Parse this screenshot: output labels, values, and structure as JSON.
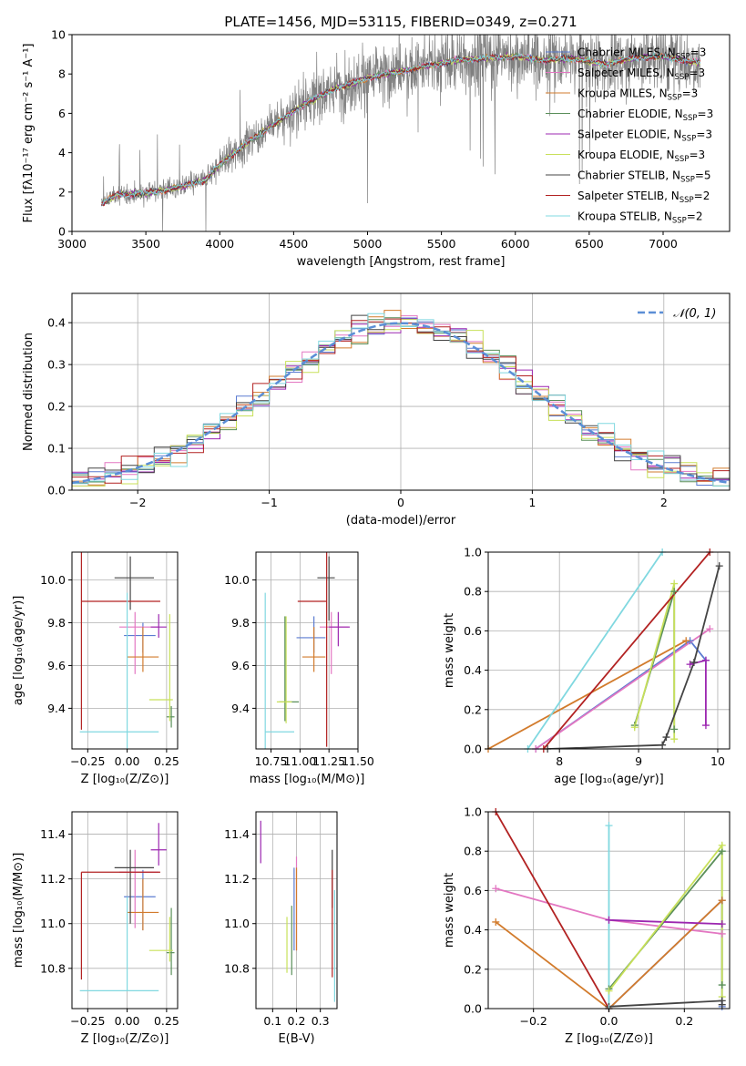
{
  "chart_data": [
    {
      "type": "line",
      "title": "PLATE=1456, MJD=53115, FIBERID=0349, z=0.271",
      "xlabel": "wavelength [Angstrom, rest frame]",
      "ylabel": "Flux [fλ10⁻¹⁷ erg cm⁻² s⁻¹ A⁻¹]",
      "xlim": [
        3000,
        7450
      ],
      "ylim": [
        0,
        10
      ],
      "xticks": [
        3000,
        3500,
        4000,
        4500,
        5000,
        5500,
        6000,
        6500,
        7000
      ],
      "yticks": [
        0,
        2,
        4,
        6,
        8,
        10
      ],
      "legend": "top-right",
      "series": [
        {
          "name": "Chabrier MILES, N",
          "sub": "SSP",
          "suffix": "=3",
          "color": "#5b7bd1"
        },
        {
          "name": "Salpeter MILES, N",
          "sub": "SSP",
          "suffix": "=3",
          "color": "#e377c2"
        },
        {
          "name": "Kroupa MILES, N",
          "sub": "SSP",
          "suffix": "=3",
          "color": "#d27b2c"
        },
        {
          "name": "Chabrier ELODIE, N",
          "sub": "SSP",
          "suffix": "=3",
          "color": "#5a8f5a"
        },
        {
          "name": "Salpeter ELODIE, N",
          "sub": "SSP",
          "suffix": "=3",
          "color": "#9c27b0"
        },
        {
          "name": "Kroupa ELODIE, N",
          "sub": "SSP",
          "suffix": "=3",
          "color": "#c8e05a"
        },
        {
          "name": "Chabrier STELIB, N",
          "sub": "SSP",
          "suffix": "=5",
          "color": "#444444"
        },
        {
          "name": "Salpeter STELIB, N",
          "sub": "SSP",
          "suffix": "=2",
          "color": "#b22222"
        },
        {
          "name": "Kroupa STELIB, N",
          "sub": "SSP",
          "suffix": "=2",
          "color": "#80d8e0"
        }
      ],
      "data_color": "#808080",
      "continuum": {
        "x": [
          3200,
          3300,
          3500,
          3700,
          3900,
          4000,
          4200,
          4400,
          4600,
          4800,
          5000,
          5200,
          5400,
          5600,
          5800,
          6000,
          6200,
          6400,
          6600,
          6800,
          7000,
          7200
        ],
        "y": [
          1.4,
          1.85,
          1.95,
          2.2,
          2.6,
          3.4,
          4.6,
          5.6,
          6.6,
          7.3,
          7.8,
          8.1,
          8.4,
          8.7,
          8.8,
          8.9,
          8.7,
          8.8,
          8.5,
          8.8,
          8.9,
          8.6
        ]
      }
    },
    {
      "type": "step",
      "xlabel": "(data-model)/error",
      "ylabel": "Normed distribution",
      "xlim": [
        -2.5,
        2.5
      ],
      "ylim": [
        0,
        0.47
      ],
      "xticks": [
        -2,
        -1,
        0,
        1,
        2
      ],
      "yticks": [
        0.0,
        0.1,
        0.2,
        0.3,
        0.4
      ],
      "reference": {
        "label": "𝒩(0, 1)",
        "color": "#5b8ed6"
      }
    },
    {
      "type": "errorbar",
      "xlabel": "Z [log₁₀(Z/Z⊙)]",
      "ylabel": "age  [log₁₀(age/yr)]",
      "xlim": [
        -0.35,
        0.32
      ],
      "ylim": [
        9.21,
        10.13
      ],
      "xticks": [
        -0.25,
        0.0,
        0.25
      ],
      "yticks": [
        9.4,
        9.6,
        9.8,
        10.0
      ],
      "points": [
        {
          "x": 0.1,
          "xerr": [
            0.12,
            0.08
          ],
          "y": 9.74,
          "yerr": [
            0.08,
            0.06
          ]
        },
        {
          "x": 0.05,
          "xerr": [
            0.1,
            0.15
          ],
          "y": 9.78,
          "yerr": [
            0.22,
            0.07
          ]
        },
        {
          "x": 0.1,
          "xerr": [
            0.1,
            0.1
          ],
          "y": 9.64,
          "yerr": [
            0.07,
            0.14
          ]
        },
        {
          "x": 0.28,
          "xerr": [
            0.03,
            0.02
          ],
          "y": 9.36,
          "yerr": [
            0.05,
            0.05
          ]
        },
        {
          "x": 0.2,
          "xerr": [
            0.05,
            0.05
          ],
          "y": 9.78,
          "yerr": [
            0.05,
            0.06
          ]
        },
        {
          "x": 0.27,
          "xerr": [
            0.13,
            0.02
          ],
          "y": 9.44,
          "yerr": [
            0.1,
            0.4
          ]
        },
        {
          "x": 0.02,
          "xerr": [
            0.1,
            0.15
          ],
          "y": 10.01,
          "yerr": [
            0.15,
            0.1
          ]
        },
        {
          "x": -0.29,
          "xerr": [
            0.0,
            0.5
          ],
          "y": 9.9,
          "yerr": [
            0.6,
            0.25
          ]
        },
        {
          "x": 0.0,
          "xerr": [
            0.3,
            0.2
          ],
          "y": 9.29,
          "yerr": [
            0.15,
            0.65
          ]
        }
      ]
    },
    {
      "type": "errorbar",
      "xlabel": "mass [log₁₀(M/M⊙)]",
      "xlim": [
        10.62,
        11.5
      ],
      "ylim": [
        9.21,
        10.13
      ],
      "xticks": [
        10.75,
        11.0,
        11.25,
        11.5
      ],
      "yticks": [
        9.4,
        9.6,
        9.8,
        10.0
      ],
      "points": [
        {
          "x": 11.12,
          "xerr": [
            0.15,
            0.1
          ],
          "y": 9.73,
          "yerr": [
            0.07,
            0.1
          ]
        },
        {
          "x": 11.27,
          "xerr": [
            0.1,
            0.15
          ],
          "y": 9.78,
          "yerr": [
            0.22,
            0.07
          ]
        },
        {
          "x": 11.12,
          "xerr": [
            0.1,
            0.1
          ],
          "y": 9.64,
          "yerr": [
            0.07,
            0.14
          ]
        },
        {
          "x": 10.87,
          "xerr": [
            0.05,
            0.12
          ],
          "y": 9.43,
          "yerr": [
            0.09,
            0.4
          ]
        },
        {
          "x": 11.33,
          "xerr": [
            0.08,
            0.1
          ],
          "y": 9.78,
          "yerr": [
            0.09,
            0.07
          ]
        },
        {
          "x": 10.88,
          "xerr": [
            0.08,
            0.05
          ],
          "y": 9.43,
          "yerr": [
            0.1,
            0.4
          ]
        },
        {
          "x": 11.25,
          "xerr": [
            0.1,
            0.05
          ],
          "y": 10.01,
          "yerr": [
            0.2,
            0.1
          ]
        },
        {
          "x": 11.23,
          "xerr": [
            0.25,
            0.0
          ],
          "y": 9.9,
          "yerr": [
            0.68,
            0.25
          ]
        },
        {
          "x": 10.7,
          "xerr": [
            0.0,
            0.25
          ],
          "y": 9.29,
          "yerr": [
            0.15,
            0.65
          ]
        }
      ]
    },
    {
      "type": "line",
      "xlabel": "age  [log₁₀(age/yr)]",
      "ylabel": "mass weight",
      "xlim": [
        7.1,
        10.15
      ],
      "ylim": [
        0,
        1
      ],
      "xticks": [
        8,
        9,
        10
      ],
      "yticks": [
        0.0,
        0.2,
        0.4,
        0.6,
        0.8,
        1.0
      ],
      "series": [
        {
          "x": [
            7.7,
            9.65,
            9.85
          ],
          "y": [
            0.0,
            0.55,
            0.45
          ]
        },
        {
          "x": [
            7.7,
            9.9
          ],
          "y": [
            0.0,
            0.61
          ]
        },
        {
          "x": [
            7.1,
            9.6
          ],
          "y": [
            0.0,
            0.55
          ]
        },
        {
          "x": [
            8.95,
            9.45,
            9.45
          ],
          "y": [
            0.12,
            0.8,
            0.1
          ]
        },
        {
          "x": [
            9.65,
            9.85,
            9.85
          ],
          "y": [
            0.43,
            0.45,
            0.12
          ]
        },
        {
          "x": [
            8.95,
            9.45,
            9.45
          ],
          "y": [
            0.11,
            0.84,
            0.05
          ]
        },
        {
          "x": [
            7.85,
            9.3,
            9.35,
            9.7,
            10.02
          ],
          "y": [
            0.0,
            0.02,
            0.06,
            0.44,
            0.93
          ]
        },
        {
          "x": [
            7.8,
            9.9
          ],
          "y": [
            0.0,
            1.0
          ]
        },
        {
          "x": [
            7.6,
            9.3
          ],
          "y": [
            0.0,
            1.0
          ]
        }
      ]
    },
    {
      "type": "errorbar",
      "xlabel": "Z [log₁₀(Z/Z⊙)]",
      "ylabel": "mass [log₁₀(M/M⊙)]",
      "xlim": [
        -0.35,
        0.32
      ],
      "ylim": [
        10.62,
        11.5
      ],
      "xticks": [
        -0.25,
        0.0,
        0.25
      ],
      "yticks": [
        10.8,
        11.0,
        11.2,
        11.4
      ],
      "points": [
        {
          "x": 0.1,
          "xerr": [
            0.12,
            0.08
          ],
          "y": 11.12,
          "yerr": [
            0.15,
            0.12
          ]
        },
        {
          "x": 0.05,
          "xerr": [
            0.1,
            0.15
          ],
          "y": 11.23,
          "yerr": [
            0.25,
            0.1
          ]
        },
        {
          "x": 0.1,
          "xerr": [
            0.1,
            0.1
          ],
          "y": 11.05,
          "yerr": [
            0.08,
            0.15
          ]
        },
        {
          "x": 0.28,
          "xerr": [
            0.03,
            0.02
          ],
          "y": 10.87,
          "yerr": [
            0.1,
            0.2
          ]
        },
        {
          "x": 0.2,
          "xerr": [
            0.05,
            0.05
          ],
          "y": 11.33,
          "yerr": [
            0.07,
            0.12
          ]
        },
        {
          "x": 0.27,
          "xerr": [
            0.13,
            0.02
          ],
          "y": 10.88,
          "yerr": [
            0.05,
            0.15
          ]
        },
        {
          "x": 0.02,
          "xerr": [
            0.1,
            0.15
          ],
          "y": 11.25,
          "yerr": [
            0.25,
            0.08
          ]
        },
        {
          "x": -0.29,
          "xerr": [
            0.0,
            0.5
          ],
          "y": 11.23,
          "yerr": [
            0.48,
            0.0
          ]
        },
        {
          "x": 0.0,
          "xerr": [
            0.3,
            0.2
          ],
          "y": 10.7,
          "yerr": [
            0.0,
            0.42
          ]
        }
      ]
    },
    {
      "type": "errorbar",
      "xlabel": "E(B-V)",
      "xlim": [
        0.03,
        0.37
      ],
      "ylim": [
        10.62,
        11.5
      ],
      "xticks": [
        0.1,
        0.2,
        0.3
      ],
      "yticks": [
        10.8,
        11.0,
        11.2,
        11.4
      ],
      "points": [
        {
          "x": 0.19,
          "xerr": [
            0,
            0
          ],
          "y": 11.05,
          "yerr": [
            0.17,
            0.2
          ]
        },
        {
          "x": 0.2,
          "xerr": [
            0,
            0
          ],
          "y": 11.1,
          "yerr": [
            0.22,
            0.2
          ]
        },
        {
          "x": 0.2,
          "xerr": [
            0,
            0
          ],
          "y": 11.05,
          "yerr": [
            0.17,
            0.2
          ]
        },
        {
          "x": 0.18,
          "xerr": [
            0,
            0
          ],
          "y": 10.92,
          "yerr": [
            0.15,
            0.16
          ]
        },
        {
          "x": 0.05,
          "xerr": [
            0,
            0
          ],
          "y": 11.36,
          "yerr": [
            0.09,
            0.1
          ]
        },
        {
          "x": 0.16,
          "xerr": [
            0,
            0
          ],
          "y": 10.93,
          "yerr": [
            0.15,
            0.1
          ]
        },
        {
          "x": 0.35,
          "xerr": [
            0,
            0
          ],
          "y": 11.2,
          "yerr": [
            0.13,
            0.13
          ]
        },
        {
          "x": 0.35,
          "xerr": [
            0,
            0
          ],
          "y": 11.0,
          "yerr": [
            0.24,
            0.24
          ]
        },
        {
          "x": 0.36,
          "xerr": [
            0,
            0
          ],
          "y": 10.9,
          "yerr": [
            0.25,
            0.25
          ]
        }
      ]
    },
    {
      "type": "line",
      "xlabel": "Z [log₁₀(Z/Z⊙)]",
      "ylabel": "mass weight",
      "xlim": [
        -0.32,
        0.32
      ],
      "ylim": [
        0,
        1
      ],
      "xticks": [
        -0.2,
        0.0,
        0.2
      ],
      "yticks": [
        0.0,
        0.2,
        0.4,
        0.6,
        0.8,
        1.0
      ],
      "series": [
        {
          "x": [
            0.0,
            0.3,
            0.3
          ],
          "y": [
            0.0,
            0.55,
            0.01
          ]
        },
        {
          "x": [
            -0.3,
            0.0,
            0.3
          ],
          "y": [
            0.61,
            0.45,
            0.38
          ]
        },
        {
          "x": [
            -0.3,
            0.0,
            0.3
          ],
          "y": [
            0.44,
            0.0,
            0.55
          ]
        },
        {
          "x": [
            0.0,
            0.3,
            0.3
          ],
          "y": [
            0.1,
            0.8,
            0.12
          ]
        },
        {
          "x": [
            0.0,
            0.3
          ],
          "y": [
            0.45,
            0.43
          ]
        },
        {
          "x": [
            0.0,
            0.3,
            0.3
          ],
          "y": [
            0.09,
            0.83,
            0.06
          ]
        },
        {
          "x": [
            0.0,
            0.3,
            0.3
          ],
          "y": [
            0.01,
            0.04,
            0.02
          ]
        },
        {
          "x": [
            -0.3,
            0.0
          ],
          "y": [
            1.0,
            0.0
          ]
        },
        {
          "x": [
            0.0,
            0.0
          ],
          "y": [
            0.0,
            0.93
          ]
        }
      ]
    }
  ]
}
